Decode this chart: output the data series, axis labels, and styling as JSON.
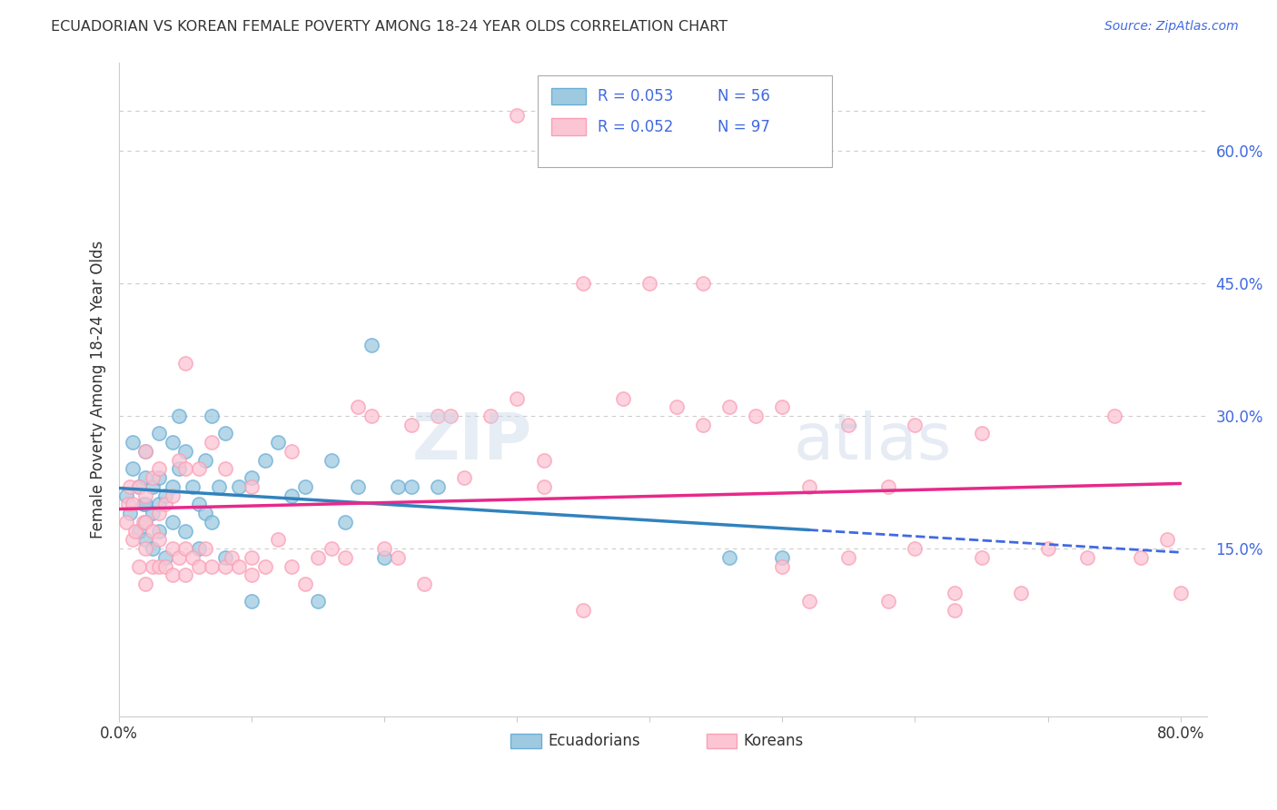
{
  "title": "ECUADORIAN VS KOREAN FEMALE POVERTY AMONG 18-24 YEAR OLDS CORRELATION CHART",
  "source": "Source: ZipAtlas.com",
  "ylabel": "Female Poverty Among 18-24 Year Olds",
  "xlim": [
    0.0,
    0.82
  ],
  "ylim": [
    -0.04,
    0.7
  ],
  "x_tick_positions": [
    0.0,
    0.1,
    0.2,
    0.3,
    0.4,
    0.5,
    0.6,
    0.7,
    0.8
  ],
  "x_tick_labels": [
    "0.0%",
    "",
    "",
    "",
    "",
    "",
    "",
    "",
    "80.0%"
  ],
  "y_ticks_right": [
    0.15,
    0.3,
    0.45,
    0.6
  ],
  "y_tick_labels_right": [
    "15.0%",
    "30.0%",
    "45.0%",
    "60.0%"
  ],
  "legend_r_ecu": "R = 0.053",
  "legend_n_ecu": "N = 56",
  "legend_r_kor": "R = 0.052",
  "legend_n_kor": "N = 97",
  "color_ecu_fill": "#9ecae1",
  "color_ecu_edge": "#6baed6",
  "color_kor_fill": "#fcc5d4",
  "color_kor_edge": "#fa9fb5",
  "color_trendline_ecu": "#3182bd",
  "color_trendline_kor": "#e7298a",
  "color_trendline_dashed": "#4169E1",
  "color_blue_text": "#4169E1",
  "color_dark_text": "#333333",
  "background_color": "#ffffff",
  "grid_color": "#cccccc",
  "ecu_trendline_end": 0.52,
  "kor_trendline_end": 0.8,
  "ecuadorian_x": [
    0.005,
    0.008,
    0.01,
    0.01,
    0.015,
    0.015,
    0.018,
    0.02,
    0.02,
    0.02,
    0.02,
    0.02,
    0.025,
    0.025,
    0.025,
    0.03,
    0.03,
    0.03,
    0.03,
    0.035,
    0.035,
    0.04,
    0.04,
    0.04,
    0.045,
    0.045,
    0.05,
    0.05,
    0.055,
    0.06,
    0.06,
    0.065,
    0.065,
    0.07,
    0.07,
    0.075,
    0.08,
    0.08,
    0.09,
    0.1,
    0.1,
    0.11,
    0.12,
    0.13,
    0.14,
    0.15,
    0.16,
    0.17,
    0.18,
    0.19,
    0.2,
    0.21,
    0.22,
    0.24,
    0.46,
    0.5
  ],
  "ecuadorian_y": [
    0.21,
    0.19,
    0.24,
    0.27,
    0.17,
    0.22,
    0.2,
    0.16,
    0.18,
    0.2,
    0.23,
    0.26,
    0.15,
    0.19,
    0.22,
    0.17,
    0.2,
    0.23,
    0.28,
    0.14,
    0.21,
    0.18,
    0.22,
    0.27,
    0.24,
    0.3,
    0.17,
    0.26,
    0.22,
    0.15,
    0.2,
    0.19,
    0.25,
    0.18,
    0.3,
    0.22,
    0.14,
    0.28,
    0.22,
    0.09,
    0.23,
    0.25,
    0.27,
    0.21,
    0.22,
    0.09,
    0.25,
    0.18,
    0.22,
    0.38,
    0.14,
    0.22,
    0.22,
    0.22,
    0.14,
    0.14
  ],
  "korean_x": [
    0.005,
    0.007,
    0.008,
    0.01,
    0.01,
    0.012,
    0.015,
    0.015,
    0.018,
    0.02,
    0.02,
    0.02,
    0.02,
    0.02,
    0.025,
    0.025,
    0.025,
    0.03,
    0.03,
    0.03,
    0.03,
    0.035,
    0.035,
    0.04,
    0.04,
    0.04,
    0.045,
    0.045,
    0.05,
    0.05,
    0.05,
    0.05,
    0.055,
    0.06,
    0.06,
    0.065,
    0.07,
    0.07,
    0.08,
    0.08,
    0.085,
    0.09,
    0.1,
    0.1,
    0.1,
    0.11,
    0.12,
    0.13,
    0.13,
    0.14,
    0.15,
    0.16,
    0.17,
    0.18,
    0.19,
    0.2,
    0.21,
    0.22,
    0.23,
    0.24,
    0.25,
    0.26,
    0.28,
    0.3,
    0.32,
    0.35,
    0.38,
    0.4,
    0.42,
    0.44,
    0.46,
    0.48,
    0.5,
    0.52,
    0.55,
    0.58,
    0.6,
    0.63,
    0.65,
    0.68,
    0.7,
    0.73,
    0.75,
    0.77,
    0.79,
    0.8,
    0.3,
    0.32,
    0.35,
    0.5,
    0.52,
    0.55,
    0.58,
    0.6,
    0.63,
    0.65,
    0.44
  ],
  "korean_y": [
    0.18,
    0.2,
    0.22,
    0.16,
    0.2,
    0.17,
    0.13,
    0.22,
    0.18,
    0.11,
    0.15,
    0.18,
    0.21,
    0.26,
    0.13,
    0.17,
    0.23,
    0.13,
    0.16,
    0.19,
    0.24,
    0.13,
    0.2,
    0.12,
    0.15,
    0.21,
    0.14,
    0.25,
    0.12,
    0.15,
    0.24,
    0.36,
    0.14,
    0.13,
    0.24,
    0.15,
    0.13,
    0.27,
    0.13,
    0.24,
    0.14,
    0.13,
    0.12,
    0.14,
    0.22,
    0.13,
    0.16,
    0.13,
    0.26,
    0.11,
    0.14,
    0.15,
    0.14,
    0.31,
    0.3,
    0.15,
    0.14,
    0.29,
    0.11,
    0.3,
    0.3,
    0.23,
    0.3,
    0.32,
    0.22,
    0.45,
    0.32,
    0.45,
    0.31,
    0.45,
    0.31,
    0.3,
    0.31,
    0.22,
    0.29,
    0.22,
    0.29,
    0.1,
    0.28,
    0.1,
    0.15,
    0.14,
    0.3,
    0.14,
    0.16,
    0.1,
    0.64,
    0.25,
    0.08,
    0.13,
    0.09,
    0.14,
    0.09,
    0.15,
    0.08,
    0.14,
    0.29
  ]
}
